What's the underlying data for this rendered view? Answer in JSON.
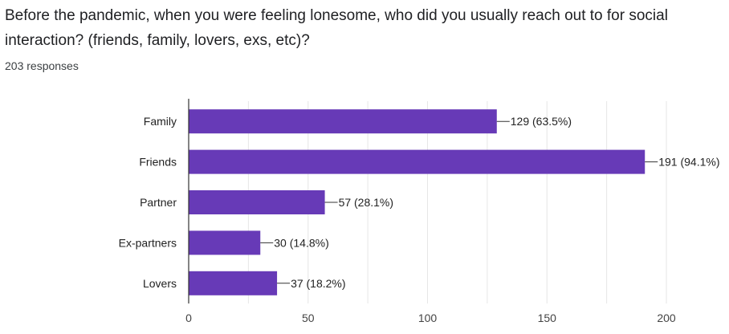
{
  "question": {
    "title": "Before the pandemic, when you were feeling lonesome, who did you usually reach out to for social interaction? (friends, family, lovers, exs, etc)?",
    "responses": "203 responses"
  },
  "colors": {
    "bar": "#673ab7",
    "grid": "#e6e6e6",
    "axis": "#333333"
  },
  "chart_data": {
    "type": "bar",
    "orientation": "horizontal",
    "categories": [
      "Family",
      "Friends",
      "Partner",
      "Ex-partners",
      "Lovers"
    ],
    "values": [
      129,
      191,
      57,
      30,
      37
    ],
    "data_labels": [
      "129 (63.5%)",
      "191 (94.1%)",
      "57 (28.1%)",
      "30 (14.8%)",
      "37 (18.2%)"
    ],
    "x_ticks": [
      0,
      50,
      100,
      150,
      200
    ],
    "xlim": [
      0,
      200
    ],
    "grid": true,
    "title": "",
    "xlabel": "",
    "ylabel": ""
  }
}
